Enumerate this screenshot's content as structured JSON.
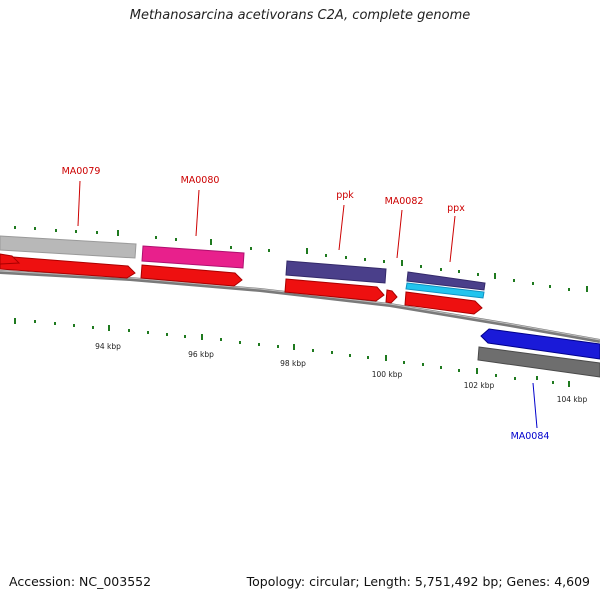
{
  "title": "Methanosarcina acetivorans C2A, complete genome",
  "accession": "Accession: NC_003552",
  "summary": "Topology: circular; Length: 5,751,492 bp; Genes: 4,609",
  "colors": {
    "label_forward": "#cc0000",
    "label_reverse": "#0000cc",
    "tick": "#008000",
    "backbone": "#808080"
  },
  "gene_labels": [
    {
      "text": "MA0079",
      "color": "#cc0000"
    },
    {
      "text": "MA0080",
      "color": "#cc0000"
    },
    {
      "text": "ppk",
      "color": "#cc0000"
    },
    {
      "text": "MA0082",
      "color": "#cc0000"
    },
    {
      "text": "ppx",
      "color": "#cc0000"
    },
    {
      "text": "MA0084",
      "color": "#0000cc"
    }
  ],
  "tick_labels": [
    "94 kbp",
    "96 kbp",
    "98 kbp",
    "100 kbp",
    "102 kbp",
    "104 kbp"
  ]
}
